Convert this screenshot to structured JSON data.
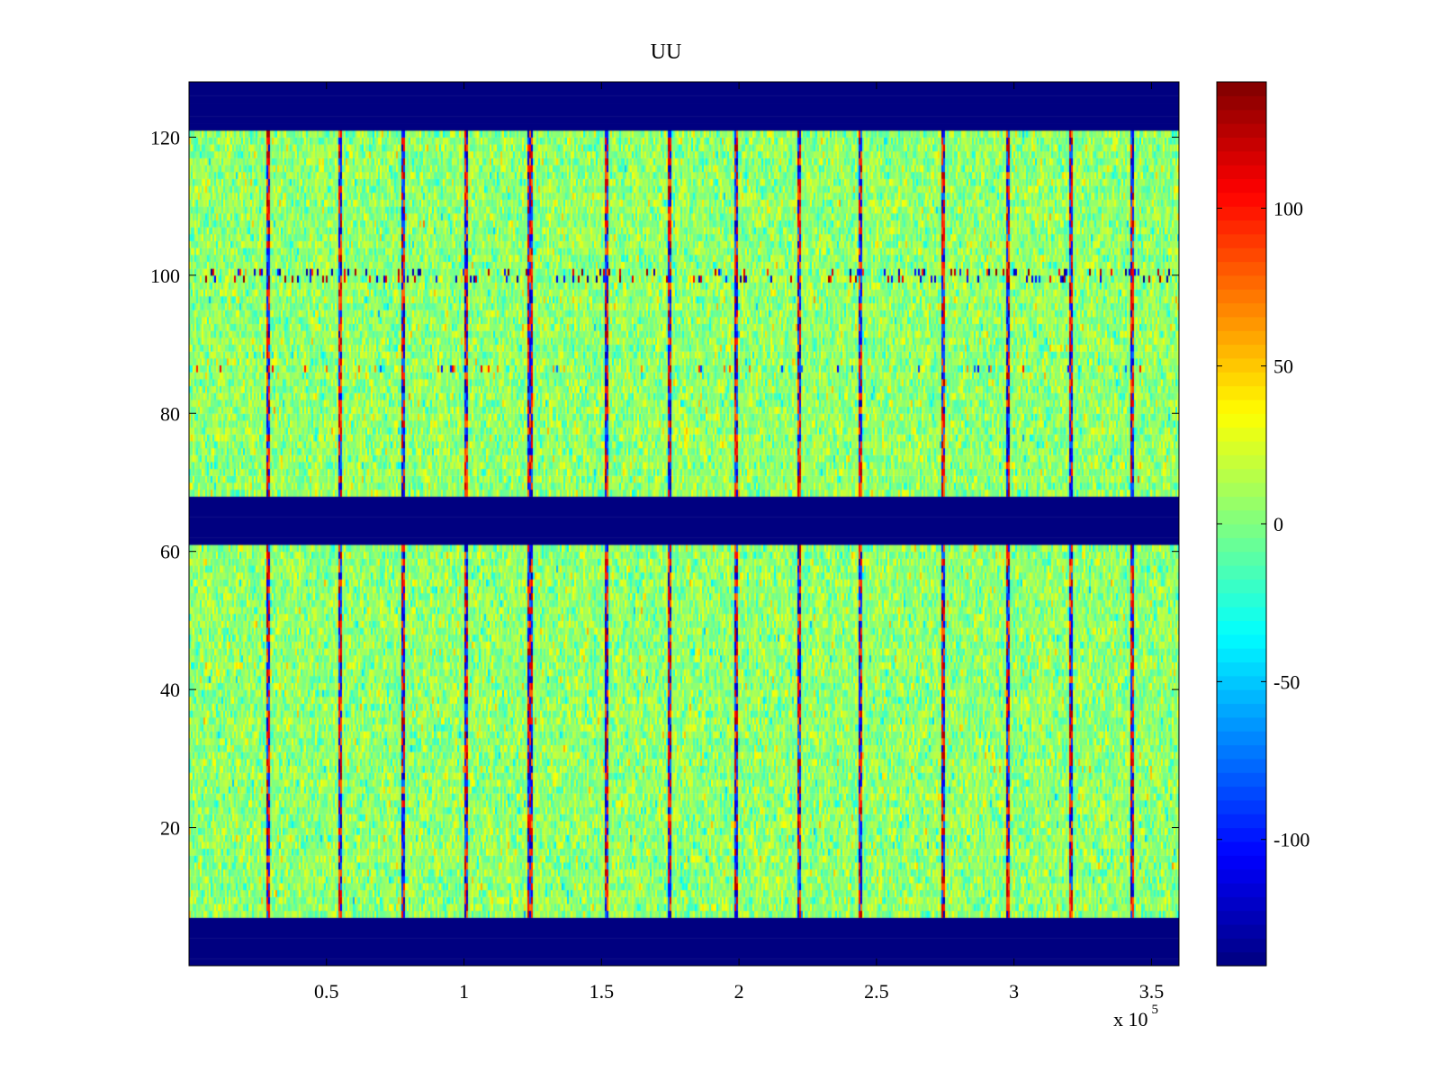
{
  "chart_data": {
    "type": "heatmap",
    "title": "UU",
    "xlabel": "",
    "ylabel": "",
    "x_range": [
      0,
      360000
    ],
    "y_range": [
      0,
      128
    ],
    "x_ticks": [
      {
        "value": 50000,
        "label": "0.5"
      },
      {
        "value": 100000,
        "label": "1"
      },
      {
        "value": 150000,
        "label": "1.5"
      },
      {
        "value": 200000,
        "label": "2"
      },
      {
        "value": 250000,
        "label": "2.5"
      },
      {
        "value": 300000,
        "label": "3"
      },
      {
        "value": 350000,
        "label": "3.5"
      }
    ],
    "x_multiplier": {
      "base": "x 10",
      "exponent": "5"
    },
    "y_ticks": [
      {
        "value": 20,
        "label": "20"
      },
      {
        "value": 40,
        "label": "40"
      },
      {
        "value": 60,
        "label": "60"
      },
      {
        "value": 80,
        "label": "80"
      },
      {
        "value": 100,
        "label": "100"
      },
      {
        "value": 120,
        "label": "120"
      }
    ],
    "colorbar": {
      "colormap": "jet",
      "range": [
        -140,
        140
      ],
      "ticks": [
        {
          "value": 100,
          "label": "100"
        },
        {
          "value": 50,
          "label": "50"
        },
        {
          "value": 0,
          "label": "0"
        },
        {
          "value": -50,
          "label": "-50"
        },
        {
          "value": -100,
          "label": "-100"
        }
      ]
    },
    "masked_rows": [
      [
        0,
        7
      ],
      [
        61,
        68
      ],
      [
        121,
        128
      ]
    ],
    "masked_value": -140,
    "notable_features": {
      "strong_columns_x": [
        29000,
        55000,
        78000,
        101000,
        124000,
        152000,
        175000,
        199000,
        222000,
        244000,
        274000,
        298000,
        321000,
        343000
      ],
      "noisy_row_y": 100,
      "secondary_row_y": 86
    },
    "grid": false,
    "legend": "none"
  }
}
